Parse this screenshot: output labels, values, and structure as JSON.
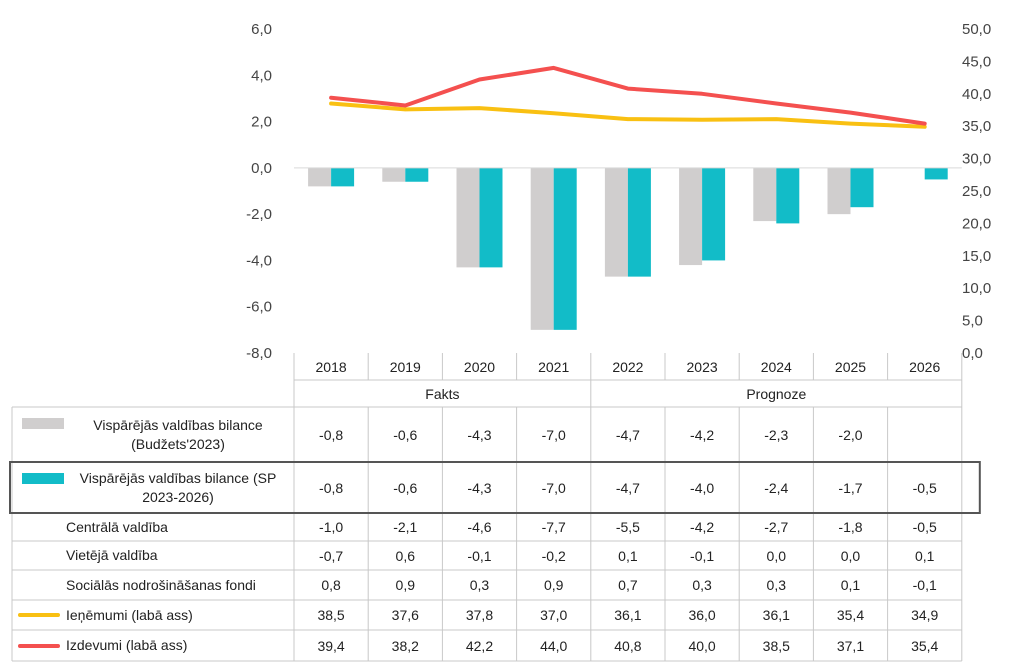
{
  "chart_data": {
    "type": "bar",
    "categories": [
      "2018",
      "2019",
      "2020",
      "2021",
      "2022",
      "2023",
      "2024",
      "2025",
      "2026"
    ],
    "groups": [
      {
        "label": "Fakts",
        "span": [
          0,
          3
        ]
      },
      {
        "label": "Prognoze",
        "span": [
          4,
          8
        ]
      }
    ],
    "left_axis": {
      "min": -8,
      "max": 6,
      "step": 2,
      "ticks": [
        "6,0",
        "4,0",
        "2,0",
        "0,0",
        "-2,0",
        "-4,0",
        "-6,0",
        "-8,0"
      ]
    },
    "right_axis": {
      "min": 0,
      "max": 50,
      "step": 5,
      "ticks": [
        "50,0",
        "45,0",
        "40,0",
        "35,0",
        "30,0",
        "25,0",
        "20,0",
        "15,0",
        "10,0",
        "5,0",
        "0,0"
      ]
    },
    "series": [
      {
        "name": "Vispārējās valdības bilance (Budžets'2023)",
        "kind": "bar",
        "axis": "left",
        "color": "#d0cece",
        "values": [
          -0.8,
          -0.6,
          -4.3,
          -7.0,
          -4.7,
          -4.2,
          -2.3,
          -2.0,
          null
        ],
        "labels": [
          "-0,8",
          "-0,6",
          "-4,3",
          "-7,0",
          "-4,7",
          "-4,2",
          "-2,3",
          "-2,0",
          ""
        ]
      },
      {
        "name": "Vispārējās valdības bilance (SP 2023-2026)",
        "kind": "bar",
        "axis": "left",
        "color": "#12bcc8",
        "values": [
          -0.8,
          -0.6,
          -4.3,
          -7.0,
          -4.7,
          -4.0,
          -2.4,
          -1.7,
          -0.5
        ],
        "labels": [
          "-0,8",
          "-0,6",
          "-4,3",
          "-7,0",
          "-4,7",
          "-4,0",
          "-2,4",
          "-1,7",
          "-0,5"
        ]
      },
      {
        "name": "Centrālā valdība",
        "kind": "none",
        "values": [
          -1.0,
          -2.1,
          -4.6,
          -7.7,
          -5.5,
          -4.2,
          -2.7,
          -1.8,
          -0.5
        ],
        "labels": [
          "-1,0",
          "-2,1",
          "-4,6",
          "-7,7",
          "-5,5",
          "-4,2",
          "-2,7",
          "-1,8",
          "-0,5"
        ]
      },
      {
        "name": "Vietējā valdība",
        "kind": "none",
        "values": [
          -0.7,
          0.6,
          -0.1,
          -0.2,
          0.1,
          -0.1,
          0.0,
          0.0,
          0.1
        ],
        "labels": [
          "-0,7",
          "0,6",
          "-0,1",
          "-0,2",
          "0,1",
          "-0,1",
          "0,0",
          "0,0",
          "0,1"
        ]
      },
      {
        "name": "Sociālās nodrošināšanas fondi",
        "kind": "none",
        "values": [
          0.8,
          0.9,
          0.3,
          0.9,
          0.7,
          0.3,
          0.3,
          0.1,
          -0.1
        ],
        "labels": [
          "0,8",
          "0,9",
          "0,3",
          "0,9",
          "0,7",
          "0,3",
          "0,3",
          "0,1",
          "-0,1"
        ]
      },
      {
        "name": "Ieņēmumi (labā ass)",
        "kind": "line",
        "axis": "right",
        "color": "#f9c012",
        "values": [
          38.5,
          37.6,
          37.8,
          37.0,
          36.1,
          36.0,
          36.1,
          35.4,
          34.9
        ],
        "labels": [
          "38,5",
          "37,6",
          "37,8",
          "37,0",
          "36,1",
          "36,0",
          "36,1",
          "35,4",
          "34,9"
        ]
      },
      {
        "name": "Izdevumi (labā ass)",
        "kind": "line",
        "axis": "right",
        "color": "#f4504f",
        "values": [
          39.4,
          38.2,
          42.2,
          44.0,
          40.8,
          40.0,
          38.5,
          37.1,
          35.4
        ],
        "labels": [
          "39,4",
          "38,2",
          "42,2",
          "44,0",
          "40,8",
          "40,0",
          "38,5",
          "37,1",
          "35,4"
        ]
      }
    ],
    "grid": false,
    "title": "",
    "xlabel": "",
    "ylabel": ""
  }
}
